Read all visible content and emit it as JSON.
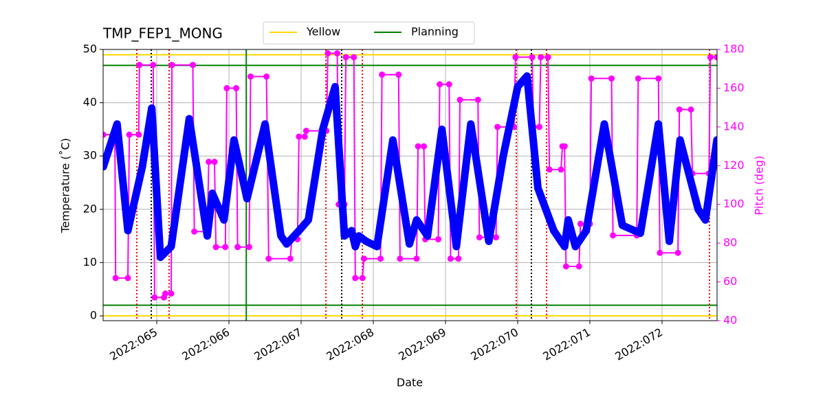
{
  "chart_data": {
    "type": "line",
    "title": "TMP_FEP1_MONG",
    "x_label": "Date",
    "y_label": "Temperature (˚C)",
    "y2_label": "Pitch (deg)",
    "y2_color": "#ff00ff",
    "grid": true,
    "xlim": [
      64.257,
      72.762
    ],
    "xticks": [
      {
        "value": 65,
        "label": "2022:065"
      },
      {
        "value": 66,
        "label": "2022:066"
      },
      {
        "value": 67,
        "label": "2022:067"
      },
      {
        "value": 68,
        "label": "2022:068"
      },
      {
        "value": 69,
        "label": "2022:069"
      },
      {
        "value": 70,
        "label": "2022:070"
      },
      {
        "value": 71,
        "label": "2022:071"
      },
      {
        "value": 72,
        "label": "2022:072"
      }
    ],
    "ylim": [
      -0.9,
      50
    ],
    "yticks": [
      0,
      10,
      20,
      30,
      40,
      50
    ],
    "y2lim": [
      40,
      180
    ],
    "y2ticks": [
      40,
      60,
      80,
      100,
      120,
      140,
      160,
      180
    ],
    "limits": [
      {
        "name": "Yellow",
        "color": "#ffd700",
        "values": [
          49,
          0
        ]
      },
      {
        "name": "Planning",
        "color": "#008000",
        "values": [
          47,
          2
        ]
      }
    ],
    "vlines": [
      {
        "color": "#008000",
        "style": "solid",
        "x": [
          66.24
        ]
      },
      {
        "color": "#000000",
        "style": "dotted",
        "x": [
          64.924,
          67.562,
          70.19
        ]
      },
      {
        "color": "#ff0000",
        "style": "dotted",
        "x": [
          64.724,
          65.171,
          67.343,
          67.848,
          69.98,
          70.4,
          72.657
        ]
      }
    ],
    "series": [
      {
        "color": "#ff00ff",
        "axis": "y2",
        "x": [
          64.26,
          64.42,
          64.43,
          64.6,
          64.62,
          64.75,
          64.76,
          64.95,
          64.97,
          65.1,
          65.12,
          65.2,
          65.21,
          65.5,
          65.52,
          65.7,
          65.72,
          65.8,
          65.82,
          65.95,
          65.97,
          66.1,
          66.12,
          66.28,
          66.3,
          66.52,
          66.55,
          66.85,
          66.87,
          66.95,
          66.97,
          67.05,
          67.07,
          67.35,
          67.37,
          67.5,
          67.52,
          67.6,
          67.62,
          67.73,
          67.75,
          67.85,
          67.87,
          68.1,
          68.12,
          68.35,
          68.37,
          68.6,
          68.62,
          68.7,
          68.72,
          68.9,
          68.92,
          69.05,
          69.07,
          69.18,
          69.2,
          69.45,
          69.47,
          69.7,
          69.72,
          69.95,
          69.97,
          70.2,
          70.22,
          70.3,
          70.32,
          70.42,
          70.44,
          70.6,
          70.62,
          70.65,
          70.67,
          70.85,
          70.87,
          71.0,
          71.02,
          71.3,
          71.32,
          71.65,
          71.67,
          71.95,
          71.97,
          72.22,
          72.24,
          72.4,
          72.42,
          72.65,
          72.67,
          72.76
        ],
        "values": [
          136,
          136,
          62,
          62,
          136,
          136,
          172,
          172,
          52,
          52,
          54,
          54,
          172,
          172,
          86,
          86,
          122,
          122,
          78,
          78,
          160,
          160,
          78,
          78,
          166,
          166,
          72,
          72,
          82,
          82,
          135,
          135,
          138,
          138,
          178,
          178,
          100,
          100,
          176,
          176,
          62,
          62,
          72,
          72,
          167,
          167,
          72,
          72,
          130,
          130,
          82,
          82,
          162,
          162,
          72,
          72,
          154,
          154,
          83,
          83,
          140,
          140,
          176,
          176,
          140,
          140,
          176,
          176,
          118,
          118,
          130,
          130,
          68,
          68,
          90,
          90,
          165,
          165,
          84,
          84,
          165,
          165,
          75,
          75,
          149,
          149,
          116,
          116,
          176,
          176
        ]
      },
      {
        "color": "#0000ff",
        "x": [
          64.26,
          64.45,
          64.6,
          64.8,
          64.93,
          65.05,
          65.2,
          65.45,
          65.7,
          65.77,
          65.93,
          66.07,
          66.25,
          66.5,
          66.72,
          66.8,
          66.97,
          67.1,
          67.3,
          67.47,
          67.6,
          67.7,
          67.75,
          67.8,
          67.9,
          68.05,
          68.27,
          68.5,
          68.6,
          68.75,
          68.95,
          69.15,
          69.35,
          69.6,
          69.8,
          70.0,
          70.13,
          70.28,
          70.5,
          70.65,
          70.7,
          70.8,
          70.95,
          71.2,
          71.45,
          71.7,
          71.95,
          72.1,
          72.25,
          72.5,
          72.6,
          72.76
        ],
        "values": [
          28,
          36,
          16,
          28,
          39,
          11,
          13,
          37,
          15,
          23,
          18,
          33,
          22,
          36,
          15,
          13.5,
          16,
          18,
          35,
          43,
          15,
          16,
          13,
          15,
          14,
          13,
          33,
          13.5,
          18,
          15,
          35,
          13,
          36,
          14,
          30,
          43,
          45,
          24,
          16,
          13,
          18,
          13,
          16,
          36,
          17,
          15.5,
          36,
          14,
          33,
          20,
          18,
          33
        ]
      }
    ]
  }
}
